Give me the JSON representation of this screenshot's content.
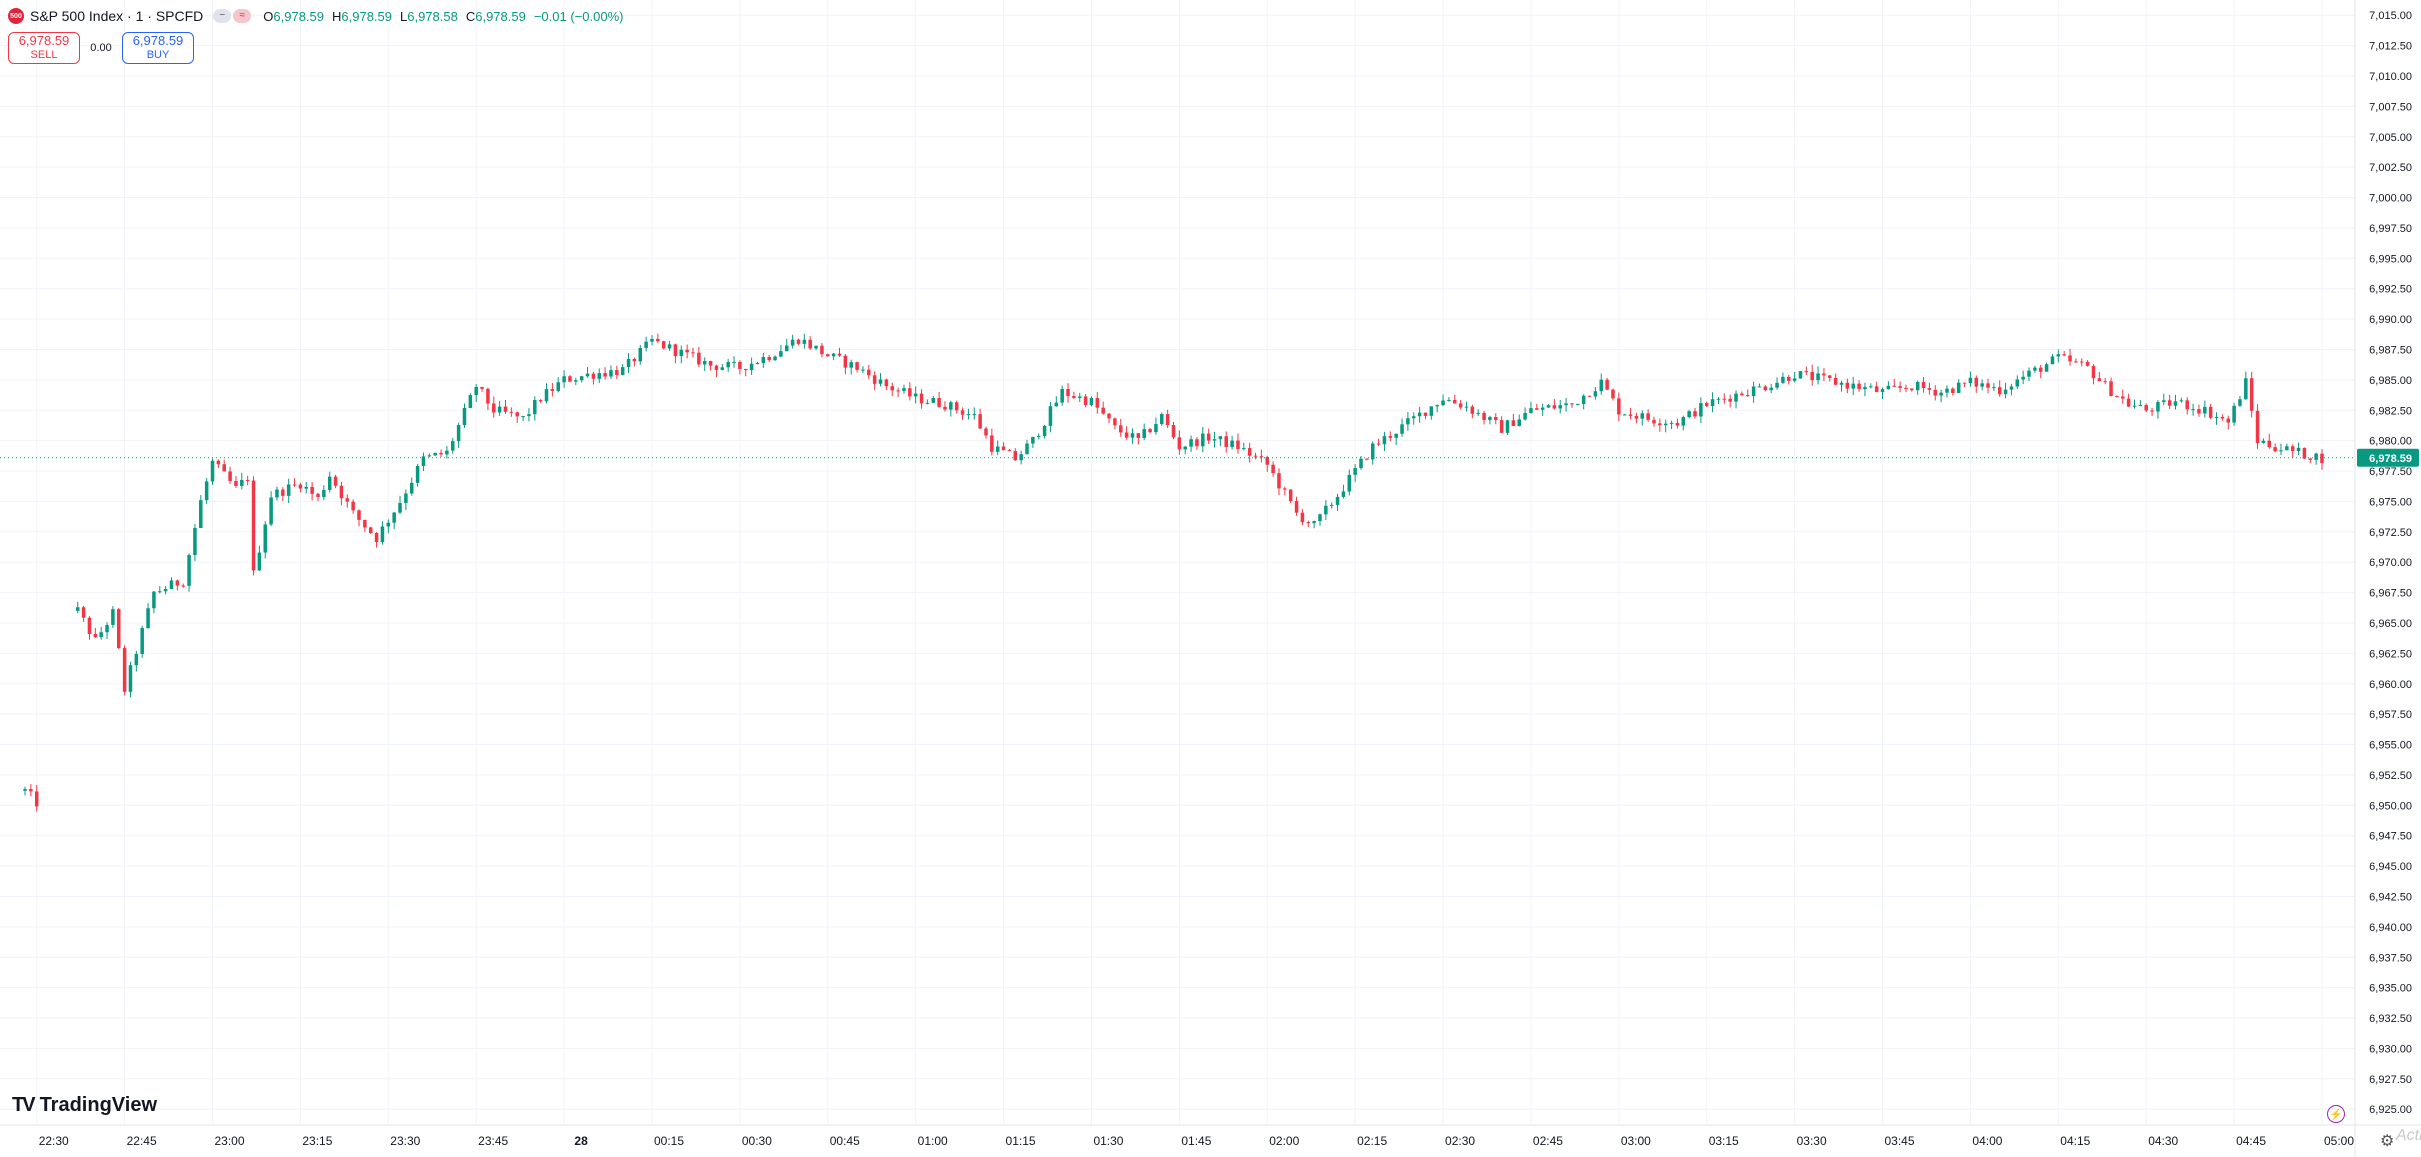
{
  "legend": {
    "symbol_badge": "500",
    "title": "S&P 500 Index · 1 · SPCFD",
    "ohlc": [
      {
        "label": "O",
        "value": "6,978.59"
      },
      {
        "label": "H",
        "value": "6,978.59"
      },
      {
        "label": "L",
        "value": "6,978.58"
      },
      {
        "label": "C",
        "value": "6,978.59"
      }
    ],
    "change": "−0.01 (−0.00%)",
    "colors": {
      "up": "#089981",
      "down": "#f23645"
    }
  },
  "trade": {
    "sell_price": "6,978.59",
    "sell_label": "SELL",
    "spread": "0.00",
    "buy_price": "6,978.59",
    "buy_label": "BUY"
  },
  "branding": {
    "logo_text": "TradingView"
  },
  "watermark": "Activ",
  "chart_data": {
    "type": "candlestick",
    "last_price": 6978.59,
    "last_price_label": "6,978.59",
    "ylim": [
      6923.7,
      7016.25
    ],
    "y_ticks": [
      "7,015.00",
      "7,012.50",
      "7,010.00",
      "7,007.50",
      "7,005.00",
      "7,002.50",
      "7,000.00",
      "6,997.50",
      "6,995.00",
      "6,992.50",
      "6,990.00",
      "6,987.50",
      "6,985.00",
      "6,982.50",
      "6,980.00",
      "6,977.50",
      "6,975.00",
      "6,972.50",
      "6,970.00",
      "6,967.50",
      "6,965.00",
      "6,962.50",
      "6,960.00",
      "6,957.50",
      "6,955.00",
      "6,952.50",
      "6,950.00",
      "6,947.50",
      "6,945.00",
      "6,942.50",
      "6,940.00",
      "6,937.50",
      "6,935.00",
      "6,932.50",
      "6,930.00",
      "6,927.50",
      "6,925.00"
    ],
    "x_ticks": [
      "22:30",
      "22:45",
      "23:00",
      "23:15",
      "23:30",
      "23:45",
      "28",
      "00:15",
      "00:30",
      "00:45",
      "01:00",
      "01:15",
      "01:30",
      "01:45",
      "02:00",
      "02:15",
      "02:30",
      "02:45",
      "03:00",
      "03:15",
      "03:30",
      "03:45",
      "04:00",
      "04:15",
      "04:30",
      "04:45",
      "05:00"
    ],
    "x_range_minutes": [
      "22:28",
      "05:00"
    ],
    "price_path": [
      [
        "22:28",
        6951.2
      ],
      [
        "22:30",
        6950.2
      ],
      [
        "22:37",
        6966.0
      ],
      [
        "22:40",
        6963.5
      ],
      [
        "22:43",
        6965.8
      ],
      [
        "22:45",
        6959.5
      ],
      [
        "22:50",
        6967.5
      ],
      [
        "22:55",
        6968.5
      ],
      [
        "22:58",
        6975.0
      ],
      [
        "23:00",
        6978.2
      ],
      [
        "23:04",
        6976.0
      ],
      [
        "23:06",
        6977.0
      ],
      [
        "23:07",
        6969.0
      ],
      [
        "23:10",
        6975.5
      ],
      [
        "23:15",
        6976.5
      ],
      [
        "23:18",
        6975.2
      ],
      [
        "23:20",
        6977.2
      ],
      [
        "23:24",
        6974.0
      ],
      [
        "23:28",
        6972.0
      ],
      [
        "23:32",
        6975.0
      ],
      [
        "23:36",
        6978.5
      ],
      [
        "23:40",
        6979.0
      ],
      [
        "23:45",
        6984.5
      ],
      [
        "23:48",
        6982.5
      ],
      [
        "23:53",
        6981.8
      ],
      [
        "23:56",
        6983.5
      ],
      [
        "00:00",
        6985.0
      ],
      [
        "00:05",
        6985.5
      ],
      [
        "00:10",
        6985.8
      ],
      [
        "00:15",
        6988.2
      ],
      [
        "00:20",
        6987.2
      ],
      [
        "00:25",
        6986.2
      ],
      [
        "00:30",
        6986.0
      ],
      [
        "00:35",
        6987.0
      ],
      [
        "00:40",
        6988.4
      ],
      [
        "00:45",
        6987.0
      ],
      [
        "00:50",
        6986.0
      ],
      [
        "00:55",
        6984.5
      ],
      [
        "01:00",
        6983.5
      ],
      [
        "01:05",
        6983.0
      ],
      [
        "01:10",
        6982.0
      ],
      [
        "01:13",
        6979.5
      ],
      [
        "01:17",
        6978.5
      ],
      [
        "01:20",
        6980.0
      ],
      [
        "01:25",
        6984.0
      ],
      [
        "01:30",
        6983.2
      ],
      [
        "01:34",
        6981.0
      ],
      [
        "01:38",
        6980.0
      ],
      [
        "01:42",
        6982.0
      ],
      [
        "01:45",
        6979.5
      ],
      [
        "01:50",
        6980.3
      ],
      [
        "01:55",
        6979.5
      ],
      [
        "02:00",
        6978.0
      ],
      [
        "02:05",
        6974.0
      ],
      [
        "02:08",
        6973.0
      ],
      [
        "02:12",
        6975.5
      ],
      [
        "02:15",
        6977.5
      ],
      [
        "02:18",
        6979.5
      ],
      [
        "02:25",
        6981.8
      ],
      [
        "02:30",
        6983.5
      ],
      [
        "02:34",
        6982.8
      ],
      [
        "02:40",
        6981.0
      ],
      [
        "02:45",
        6982.5
      ],
      [
        "02:52",
        6983.0
      ],
      [
        "02:57",
        6984.8
      ],
      [
        "03:00",
        6982.5
      ],
      [
        "03:05",
        6981.8
      ],
      [
        "03:10",
        6981.5
      ],
      [
        "03:15",
        6983.0
      ],
      [
        "03:20",
        6983.8
      ],
      [
        "03:25",
        6984.5
      ],
      [
        "03:30",
        6985.5
      ],
      [
        "03:35",
        6985.0
      ],
      [
        "03:40",
        6984.5
      ],
      [
        "03:45",
        6984.0
      ],
      [
        "03:50",
        6984.5
      ],
      [
        "03:55",
        6984.0
      ],
      [
        "04:00",
        6984.8
      ],
      [
        "04:05",
        6984.2
      ],
      [
        "04:10",
        6985.5
      ],
      [
        "04:15",
        6986.8
      ],
      [
        "04:20",
        6986.0
      ],
      [
        "04:23",
        6984.5
      ],
      [
        "04:27",
        6983.0
      ],
      [
        "04:30",
        6982.5
      ],
      [
        "04:35",
        6983.2
      ],
      [
        "04:40",
        6982.5
      ],
      [
        "04:44",
        6981.5
      ],
      [
        "04:47",
        6984.8
      ],
      [
        "04:49",
        6980.0
      ],
      [
        "04:52",
        6979.5
      ],
      [
        "04:56",
        6979.0
      ],
      [
        "05:00",
        6978.59
      ]
    ]
  }
}
